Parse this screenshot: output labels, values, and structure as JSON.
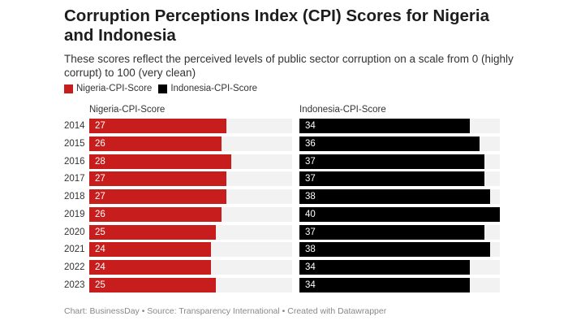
{
  "title": "Corruption Perceptions Index (CPI) Scores for Nigeria and Indonesia",
  "subtitle": "These scores reflect the perceived levels of public sector corruption on a scale from 0 (highly corrupt) to 100 (very clean)",
  "footer": "Chart: BusinessDay • Source: Transparency International • Created with Datawrapper",
  "chart_data": {
    "type": "bar",
    "title": "Corruption Perceptions Index (CPI) Scores for Nigeria and Indonesia",
    "categories": [
      "2014",
      "2015",
      "2016",
      "2017",
      "2018",
      "2019",
      "2020",
      "2021",
      "2022",
      "2023"
    ],
    "series": [
      {
        "name": "Nigeria-CPI-Score",
        "color": "#c71e1d",
        "values": [
          27,
          26,
          28,
          27,
          27,
          26,
          25,
          24,
          24,
          25
        ]
      },
      {
        "name": "Indonesia-CPI-Score",
        "color": "#000000",
        "values": [
          34,
          36,
          37,
          37,
          38,
          40,
          37,
          38,
          34,
          34
        ]
      }
    ],
    "xlim": [
      0,
      40
    ],
    "legend": "top-left"
  }
}
